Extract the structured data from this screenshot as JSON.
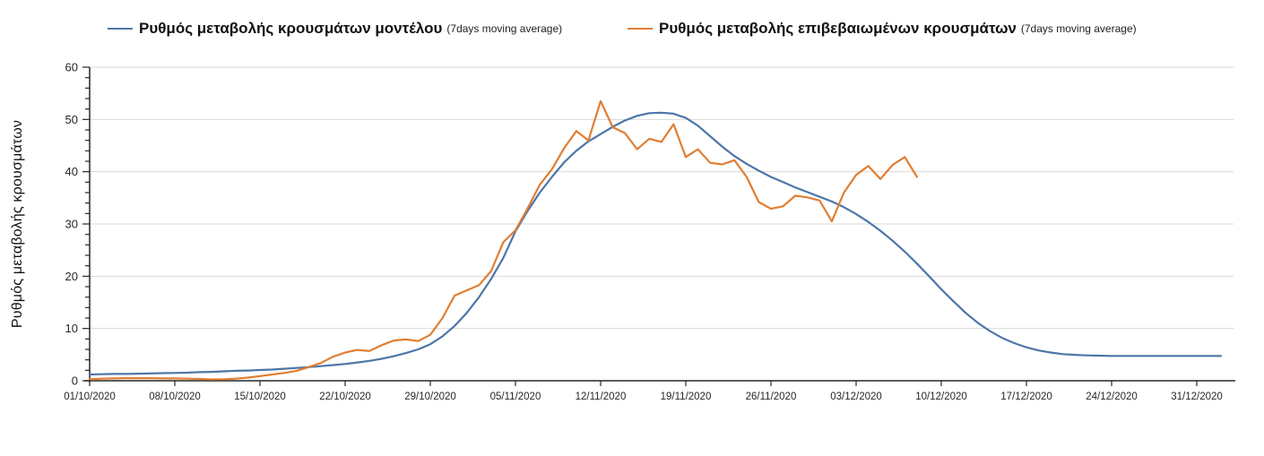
{
  "legend": {
    "items": [
      {
        "label": "Ρυθμός μεταβολής κρουσμάτων μοντέλου",
        "suffix": "(7days moving average)",
        "color": "#4d76a8"
      },
      {
        "label": "Ρυθμός μεταβολής επιβεβαιωμένων κρουσμάτων",
        "suffix": "(7days moving average)",
        "color": "#e07e33"
      }
    ]
  },
  "colors": {
    "model_line": "#4d76a8",
    "confirmed_line": "#e07e33",
    "gridline": "#d9d9d9",
    "axis": "#262626",
    "tick_label": "#262626",
    "background": "#ffffff"
  },
  "chart_data": {
    "type": "line",
    "title": "",
    "xlabel": "",
    "ylabel": "Ρυθμός μεταβολής κρουσμάτων",
    "ylim": [
      0,
      60
    ],
    "y_ticks": [
      0,
      10,
      20,
      30,
      40,
      50,
      60
    ],
    "y_minor_tick_step": 2,
    "grid": "horizontal-major",
    "legend_position": "top",
    "x_tick_labels": [
      "01/10/2020",
      "08/10/2020",
      "15/10/2020",
      "22/10/2020",
      "29/10/2020",
      "05/11/2020",
      "12/11/2020",
      "19/11/2020",
      "26/11/2020",
      "03/12/2020",
      "10/12/2020",
      "17/12/2020",
      "24/12/2020",
      "31/12/2020"
    ],
    "x_tick_days": [
      0,
      7,
      14,
      21,
      28,
      35,
      42,
      49,
      56,
      63,
      70,
      77,
      84,
      91
    ],
    "x_day0_date": "01/10/2020",
    "series": [
      {
        "name": "Ρυθμός μεταβολής κρουσμάτων μοντέλου (7days moving average)",
        "color": "#4d76a8",
        "start_day": 0,
        "values": [
          1.2,
          1.25,
          1.3,
          1.3,
          1.35,
          1.4,
          1.45,
          1.5,
          1.55,
          1.65,
          1.7,
          1.8,
          1.9,
          1.95,
          2.05,
          2.15,
          2.3,
          2.45,
          2.6,
          2.8,
          3.0,
          3.2,
          3.5,
          3.8,
          4.2,
          4.7,
          5.3,
          6.0,
          7.0,
          8.5,
          10.5,
          13,
          16,
          19.5,
          23.5,
          28.6,
          32.5,
          36,
          39,
          41.8,
          44,
          45.8,
          47.2,
          48.6,
          49.8,
          50.7,
          51.2,
          51.3,
          51.1,
          50.3,
          48.8,
          46.8,
          44.8,
          43,
          41.5,
          40.2,
          39,
          38,
          37,
          36.1,
          35.2,
          34.3,
          33.2,
          31.9,
          30.4,
          28.7,
          26.8,
          24.7,
          22.4,
          20,
          17.5,
          15.2,
          13,
          11.1,
          9.5,
          8.2,
          7.2,
          6.4,
          5.8,
          5.4,
          5.1,
          4.95,
          4.85,
          4.8,
          4.75,
          4.75,
          4.75,
          4.75,
          4.75,
          4.75,
          4.75,
          4.75,
          4.75,
          4.75
        ]
      },
      {
        "name": "Ρυθμός μεταβολής επιβεβαιωμένων κρουσμάτων (7days moving average)",
        "color": "#e07e33",
        "start_day": 0,
        "values": [
          0.3,
          0.4,
          0.45,
          0.5,
          0.5,
          0.5,
          0.45,
          0.45,
          0.4,
          0.35,
          0.25,
          0.3,
          0.4,
          0.6,
          0.9,
          1.2,
          1.5,
          1.9,
          2.6,
          3.4,
          4.6,
          5.4,
          5.9,
          5.7,
          6.8,
          7.7,
          7.9,
          7.6,
          8.8,
          12,
          16.3,
          17.3,
          18.3,
          21,
          26.5,
          28.8,
          33,
          37.5,
          40.5,
          44.5,
          47.8,
          46,
          53.5,
          48.5,
          47.4,
          44.3,
          46.3,
          45.7,
          49.1,
          42.8,
          44.3,
          41.7,
          41.4,
          42.2,
          39,
          34.2,
          32.9,
          33.4,
          35.4,
          35.1,
          34.5,
          30.5,
          36,
          39.4,
          41.1,
          38.6,
          41.3,
          42.8,
          39
        ]
      }
    ]
  }
}
